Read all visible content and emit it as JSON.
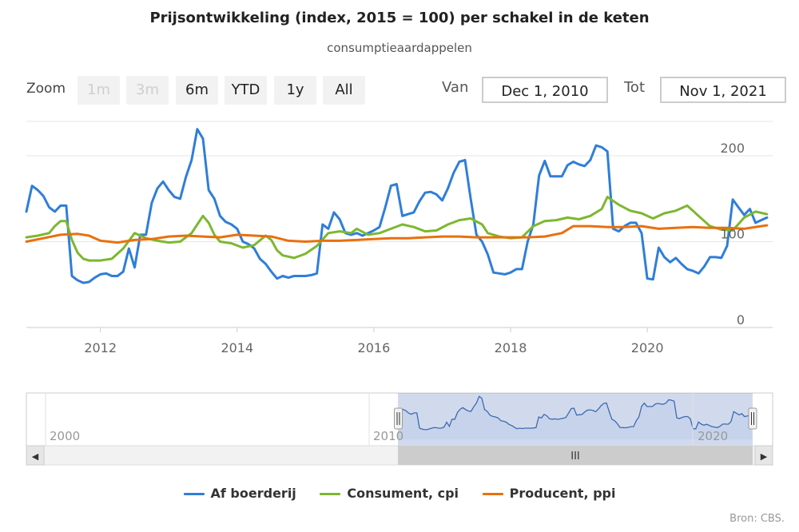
{
  "title": "Prijsontwikkeling (index, 2015 = 100) per schakel in de keten",
  "subtitle": "consumptieaardappelen",
  "zoom": {
    "label": "Zoom",
    "buttons": [
      {
        "label": "1m",
        "enabled": false
      },
      {
        "label": "3m",
        "enabled": false
      },
      {
        "label": "6m",
        "enabled": true
      },
      {
        "label": "YTD",
        "enabled": true
      },
      {
        "label": "1y",
        "enabled": true
      },
      {
        "label": "All",
        "enabled": true
      }
    ]
  },
  "range": {
    "from_label": "Van",
    "from_value": "Dec 1, 2010",
    "to_label": "Tot",
    "to_value": "Nov 1, 2021"
  },
  "navigator": {
    "year_labels": [
      "2000",
      "2010",
      "2020"
    ],
    "scroll_grip": "III",
    "left_arrow": "◀",
    "right_arrow": "▶"
  },
  "credits": "Bron: CBS.",
  "colors": {
    "farm": "#2f7ed8",
    "cpi": "#7cb82f",
    "ppi": "#e8700f",
    "grid": "#e6e6e6",
    "navigator_mask": "rgba(102,133,194,0.3)"
  },
  "chart_data": {
    "type": "line",
    "title": "Prijsontwikkeling (index, 2015 = 100) per schakel in de keten",
    "subtitle": "consumptieaardappelen",
    "xlabel": "",
    "ylabel": "",
    "x_range": [
      "2010-12-01",
      "2021-11-01"
    ],
    "ylim": [
      0,
      240
    ],
    "y_ticks": [
      0,
      100,
      200
    ],
    "x_ticks": [
      "2012",
      "2014",
      "2016",
      "2018",
      "2020"
    ],
    "grid": true,
    "legend_position": "bottom",
    "series": [
      {
        "name": "Af boerderij",
        "color": "#2f7ed8",
        "points": [
          [
            "2010-12",
            135
          ],
          [
            "2011-01",
            165
          ],
          [
            "2011-02",
            160
          ],
          [
            "2011-03",
            153
          ],
          [
            "2011-04",
            140
          ],
          [
            "2011-05",
            135
          ],
          [
            "2011-06",
            142
          ],
          [
            "2011-07",
            142
          ],
          [
            "2011-08",
            60
          ],
          [
            "2011-09",
            55
          ],
          [
            "2011-10",
            52
          ],
          [
            "2011-11",
            53
          ],
          [
            "2011-12",
            58
          ],
          [
            "2012-01",
            62
          ],
          [
            "2012-02",
            63
          ],
          [
            "2012-03",
            60
          ],
          [
            "2012-04",
            60
          ],
          [
            "2012-05",
            65
          ],
          [
            "2012-06",
            92
          ],
          [
            "2012-07",
            70
          ],
          [
            "2012-08",
            108
          ],
          [
            "2012-09",
            108
          ],
          [
            "2012-10",
            145
          ],
          [
            "2012-11",
            162
          ],
          [
            "2012-12",
            170
          ],
          [
            "2013-01",
            160
          ],
          [
            "2013-02",
            152
          ],
          [
            "2013-03",
            150
          ],
          [
            "2013-04",
            175
          ],
          [
            "2013-05",
            195
          ],
          [
            "2013-06",
            231
          ],
          [
            "2013-07",
            220
          ],
          [
            "2013-08",
            160
          ],
          [
            "2013-09",
            150
          ],
          [
            "2013-10",
            130
          ],
          [
            "2013-11",
            123
          ],
          [
            "2013-12",
            120
          ],
          [
            "2014-01",
            115
          ],
          [
            "2014-02",
            100
          ],
          [
            "2014-03",
            97
          ],
          [
            "2014-04",
            92
          ],
          [
            "2014-05",
            80
          ],
          [
            "2014-06",
            74
          ],
          [
            "2014-07",
            65
          ],
          [
            "2014-08",
            57
          ],
          [
            "2014-09",
            60
          ],
          [
            "2014-10",
            58
          ],
          [
            "2014-11",
            60
          ],
          [
            "2014-12",
            60
          ],
          [
            "2015-01",
            60
          ],
          [
            "2015-02",
            61
          ],
          [
            "2015-03",
            63
          ],
          [
            "2015-04",
            120
          ],
          [
            "2015-05",
            115
          ],
          [
            "2015-06",
            134
          ],
          [
            "2015-07",
            126
          ],
          [
            "2015-08",
            110
          ],
          [
            "2015-09",
            108
          ],
          [
            "2015-10",
            110
          ],
          [
            "2015-11",
            107
          ],
          [
            "2015-12",
            110
          ],
          [
            "2016-01",
            113
          ],
          [
            "2016-02",
            117
          ],
          [
            "2016-03",
            140
          ],
          [
            "2016-04",
            165
          ],
          [
            "2016-05",
            167
          ],
          [
            "2016-06",
            130
          ],
          [
            "2016-07",
            132
          ],
          [
            "2016-08",
            134
          ],
          [
            "2016-09",
            147
          ],
          [
            "2016-10",
            157
          ],
          [
            "2016-11",
            158
          ],
          [
            "2016-12",
            155
          ],
          [
            "2017-01",
            148
          ],
          [
            "2017-02",
            162
          ],
          [
            "2017-03",
            180
          ],
          [
            "2017-04",
            193
          ],
          [
            "2017-05",
            195
          ],
          [
            "2017-06",
            150
          ],
          [
            "2017-07",
            108
          ],
          [
            "2017-08",
            100
          ],
          [
            "2017-09",
            85
          ],
          [
            "2017-10",
            64
          ],
          [
            "2017-11",
            63
          ],
          [
            "2017-12",
            62
          ],
          [
            "2018-01",
            64
          ],
          [
            "2018-02",
            68
          ],
          [
            "2018-03",
            68
          ],
          [
            "2018-04",
            100
          ],
          [
            "2018-05",
            120
          ],
          [
            "2018-06",
            177
          ],
          [
            "2018-07",
            194
          ],
          [
            "2018-08",
            176
          ],
          [
            "2018-09",
            176
          ],
          [
            "2018-10",
            176
          ],
          [
            "2018-11",
            189
          ],
          [
            "2018-12",
            193
          ],
          [
            "2019-01",
            190
          ],
          [
            "2019-02",
            188
          ],
          [
            "2019-03",
            195
          ],
          [
            "2019-04",
            212
          ],
          [
            "2019-05",
            210
          ],
          [
            "2019-06",
            205
          ],
          [
            "2019-07",
            115
          ],
          [
            "2019-08",
            112
          ],
          [
            "2019-09",
            118
          ],
          [
            "2019-10",
            122
          ],
          [
            "2019-11",
            122
          ],
          [
            "2019-12",
            110
          ],
          [
            "2020-01",
            57
          ],
          [
            "2020-02",
            56
          ],
          [
            "2020-03",
            93
          ],
          [
            "2020-04",
            82
          ],
          [
            "2020-05",
            76
          ],
          [
            "2020-06",
            81
          ],
          [
            "2020-07",
            74
          ],
          [
            "2020-08",
            68
          ],
          [
            "2020-09",
            66
          ],
          [
            "2020-10",
            63
          ],
          [
            "2020-11",
            71
          ],
          [
            "2020-12",
            82
          ],
          [
            "2021-01",
            82
          ],
          [
            "2021-02",
            81
          ],
          [
            "2021-03",
            95
          ],
          [
            "2021-04",
            149
          ],
          [
            "2021-05",
            140
          ],
          [
            "2021-06",
            131
          ],
          [
            "2021-07",
            138
          ],
          [
            "2021-08",
            122
          ],
          [
            "2021-09",
            125
          ],
          [
            "2021-10",
            128
          ]
        ]
      },
      {
        "name": "Consument, cpi",
        "color": "#7cb82f",
        "points": [
          [
            "2010-12",
            105
          ],
          [
            "2011-02",
            107
          ],
          [
            "2011-04",
            110
          ],
          [
            "2011-05",
            118
          ],
          [
            "2011-06",
            124
          ],
          [
            "2011-07",
            124
          ],
          [
            "2011-08",
            102
          ],
          [
            "2011-09",
            87
          ],
          [
            "2011-10",
            80
          ],
          [
            "2011-11",
            78
          ],
          [
            "2012-01",
            78
          ],
          [
            "2012-03",
            80
          ],
          [
            "2012-05",
            92
          ],
          [
            "2012-07",
            110
          ],
          [
            "2012-09",
            104
          ],
          [
            "2012-11",
            101
          ],
          [
            "2013-01",
            99
          ],
          [
            "2013-03",
            100
          ],
          [
            "2013-05",
            110
          ],
          [
            "2013-06",
            120
          ],
          [
            "2013-07",
            130
          ],
          [
            "2013-08",
            122
          ],
          [
            "2013-09",
            108
          ],
          [
            "2013-10",
            100
          ],
          [
            "2013-12",
            98
          ],
          [
            "2014-02",
            93
          ],
          [
            "2014-04",
            96
          ],
          [
            "2014-06",
            107
          ],
          [
            "2014-07",
            102
          ],
          [
            "2014-08",
            90
          ],
          [
            "2014-09",
            84
          ],
          [
            "2014-11",
            81
          ],
          [
            "2015-01",
            86
          ],
          [
            "2015-03",
            95
          ],
          [
            "2015-05",
            110
          ],
          [
            "2015-07",
            112
          ],
          [
            "2015-09",
            110
          ],
          [
            "2015-10",
            115
          ],
          [
            "2015-12",
            108
          ],
          [
            "2016-02",
            110
          ],
          [
            "2016-04",
            115
          ],
          [
            "2016-06",
            120
          ],
          [
            "2016-08",
            117
          ],
          [
            "2016-10",
            112
          ],
          [
            "2016-12",
            113
          ],
          [
            "2017-02",
            120
          ],
          [
            "2017-04",
            125
          ],
          [
            "2017-06",
            127
          ],
          [
            "2017-08",
            120
          ],
          [
            "2017-09",
            110
          ],
          [
            "2017-11",
            106
          ],
          [
            "2018-01",
            104
          ],
          [
            "2018-03",
            105
          ],
          [
            "2018-05",
            118
          ],
          [
            "2018-07",
            124
          ],
          [
            "2018-09",
            125
          ],
          [
            "2018-11",
            128
          ],
          [
            "2019-01",
            126
          ],
          [
            "2019-03",
            130
          ],
          [
            "2019-05",
            138
          ],
          [
            "2019-06",
            152
          ],
          [
            "2019-08",
            143
          ],
          [
            "2019-10",
            136
          ],
          [
            "2019-12",
            133
          ],
          [
            "2020-02",
            127
          ],
          [
            "2020-04",
            133
          ],
          [
            "2020-06",
            136
          ],
          [
            "2020-08",
            142
          ],
          [
            "2020-10",
            130
          ],
          [
            "2020-12",
            118
          ],
          [
            "2021-02",
            114
          ],
          [
            "2021-04",
            113
          ],
          [
            "2021-06",
            128
          ],
          [
            "2021-08",
            135
          ],
          [
            "2021-10",
            132
          ]
        ]
      },
      {
        "name": "Producent, ppi",
        "color": "#e8700f",
        "points": [
          [
            "2010-12",
            100
          ],
          [
            "2011-03",
            104
          ],
          [
            "2011-06",
            108
          ],
          [
            "2011-09",
            109
          ],
          [
            "2011-11",
            107
          ],
          [
            "2012-01",
            101
          ],
          [
            "2012-04",
            99
          ],
          [
            "2012-07",
            102
          ],
          [
            "2012-10",
            103
          ],
          [
            "2013-01",
            106
          ],
          [
            "2013-04",
            107
          ],
          [
            "2013-07",
            106
          ],
          [
            "2013-10",
            105
          ],
          [
            "2014-01",
            108
          ],
          [
            "2014-04",
            107
          ],
          [
            "2014-07",
            106
          ],
          [
            "2014-10",
            101
          ],
          [
            "2015-01",
            100
          ],
          [
            "2015-04",
            101
          ],
          [
            "2015-07",
            101
          ],
          [
            "2015-10",
            102
          ],
          [
            "2016-01",
            103
          ],
          [
            "2016-04",
            104
          ],
          [
            "2016-07",
            104
          ],
          [
            "2016-10",
            105
          ],
          [
            "2017-01",
            106
          ],
          [
            "2017-04",
            106
          ],
          [
            "2017-07",
            105
          ],
          [
            "2017-10",
            105
          ],
          [
            "2018-01",
            105
          ],
          [
            "2018-04",
            105
          ],
          [
            "2018-07",
            106
          ],
          [
            "2018-10",
            110
          ],
          [
            "2018-12",
            118
          ],
          [
            "2019-03",
            118
          ],
          [
            "2019-06",
            117
          ],
          [
            "2019-09",
            117
          ],
          [
            "2019-12",
            118
          ],
          [
            "2020-03",
            115
          ],
          [
            "2020-06",
            116
          ],
          [
            "2020-09",
            117
          ],
          [
            "2020-12",
            116
          ],
          [
            "2021-03",
            116
          ],
          [
            "2021-06",
            115
          ],
          [
            "2021-09",
            118
          ],
          [
            "2021-10",
            119
          ]
        ]
      }
    ]
  }
}
